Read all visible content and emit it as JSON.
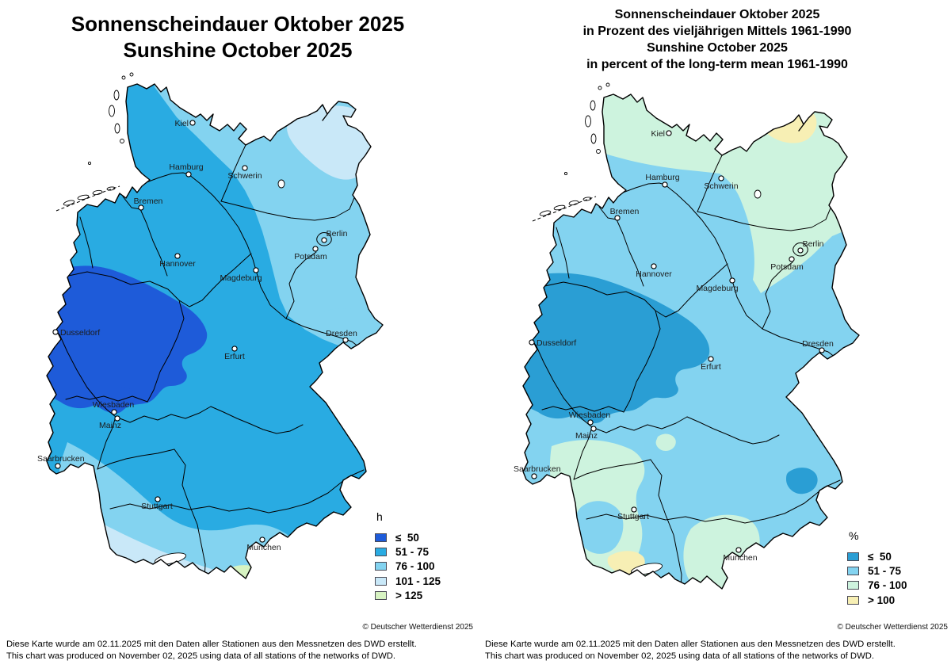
{
  "left_panel": {
    "title_lines": [
      "Sonnenscheindauer Oktober 2025",
      "Sunshine October 2025"
    ],
    "legend": {
      "unit": "h",
      "items": [
        {
          "label": "≤  50",
          "color": "#1E5BD9"
        },
        {
          "label": "51 - 75",
          "color": "#29ABE2"
        },
        {
          "label": "76 - 100",
          "color": "#83D3F0"
        },
        {
          "label": "101 - 125",
          "color": "#C9E8F8"
        },
        {
          "label": "> 125",
          "color": "#D7F3C2"
        }
      ]
    },
    "base_category_index": 1,
    "copyright": "© Deutscher Wetterdienst 2025",
    "footer_lines": [
      "Diese Karte wurde am 02.11.2025 mit den Daten aller Stationen aus den Messnetzen des DWD erstellt.",
      "This chart was produced on November 02, 2025 using data of all stations of the networks of DWD."
    ]
  },
  "right_panel": {
    "title_lines": [
      "Sonnenscheindauer Oktober 2025",
      "in Prozent des vieljährigen Mittels 1961-1990",
      "Sunshine October 2025",
      "in percent of the long-term mean 1961-1990"
    ],
    "legend": {
      "unit": "%",
      "items": [
        {
          "label": "≤  50",
          "color": "#2A9ED4"
        },
        {
          "label": "51 - 75",
          "color": "#83D3F0"
        },
        {
          "label": "76 - 100",
          "color": "#CDF3DE"
        },
        {
          "label": "> 100",
          "color": "#F7EFB4"
        }
      ]
    },
    "base_category_index": 1,
    "copyright": "© Deutscher Wetterdienst 2025",
    "footer_lines": [
      "Diese Karte wurde am 02.11.2025 mit den Daten aller Stationen aus den Messnetzen des DWD erstellt.",
      "This chart was produced on November 02, 2025 using data of all stations of the networks of DWD."
    ]
  },
  "cities": [
    "Kiel",
    "Hamburg",
    "Schwerin",
    "Bremen",
    "Hannover",
    "Berlin",
    "Potsdam",
    "Magdeburg",
    "Dusseldorf",
    "Erfurt",
    "Dresden",
    "Wiesbaden",
    "Mainz",
    "Saarbrucken",
    "Stuttgart",
    "Munchen"
  ]
}
